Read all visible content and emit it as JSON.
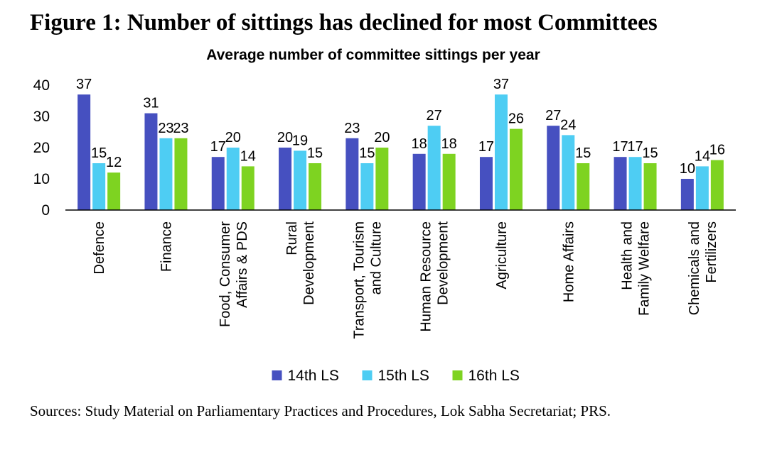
{
  "figure_title": "Figure 1: Number of sittings has declined for most Committees",
  "sources": "Sources: Study Material on Parliamentary Practices and Procedures, Lok Sabha Secretariat; PRS.",
  "chart_data": {
    "type": "bar",
    "title": "Average number of  committee sittings per year",
    "xlabel": "",
    "ylabel": "",
    "ylim": [
      0,
      40
    ],
    "yticks": [
      0,
      10,
      20,
      30,
      40
    ],
    "categories": [
      [
        "Defence"
      ],
      [
        "Finance"
      ],
      [
        "Food, Consumer",
        "Affairs & PDS"
      ],
      [
        "Rural",
        "Development"
      ],
      [
        "Transport, Tourism",
        "and Culture"
      ],
      [
        "Human Resource",
        "Development"
      ],
      [
        "Agriculture"
      ],
      [
        "Home Affairs"
      ],
      [
        "Health and",
        "Family Welfare"
      ],
      [
        "Chemicals and",
        "Fertilizers"
      ]
    ],
    "series": [
      {
        "name": "14th LS",
        "color": "#4650c0",
        "values": [
          37,
          31,
          17,
          20,
          23,
          18,
          17,
          27,
          17,
          10
        ]
      },
      {
        "name": "15th LS",
        "color": "#4ecdf3",
        "values": [
          15,
          23,
          20,
          19,
          15,
          27,
          37,
          24,
          17,
          14
        ]
      },
      {
        "name": "16th LS",
        "color": "#7ed321",
        "values": [
          12,
          23,
          14,
          15,
          20,
          18,
          26,
          15,
          15,
          16
        ]
      }
    ],
    "legend_position": "bottom"
  }
}
